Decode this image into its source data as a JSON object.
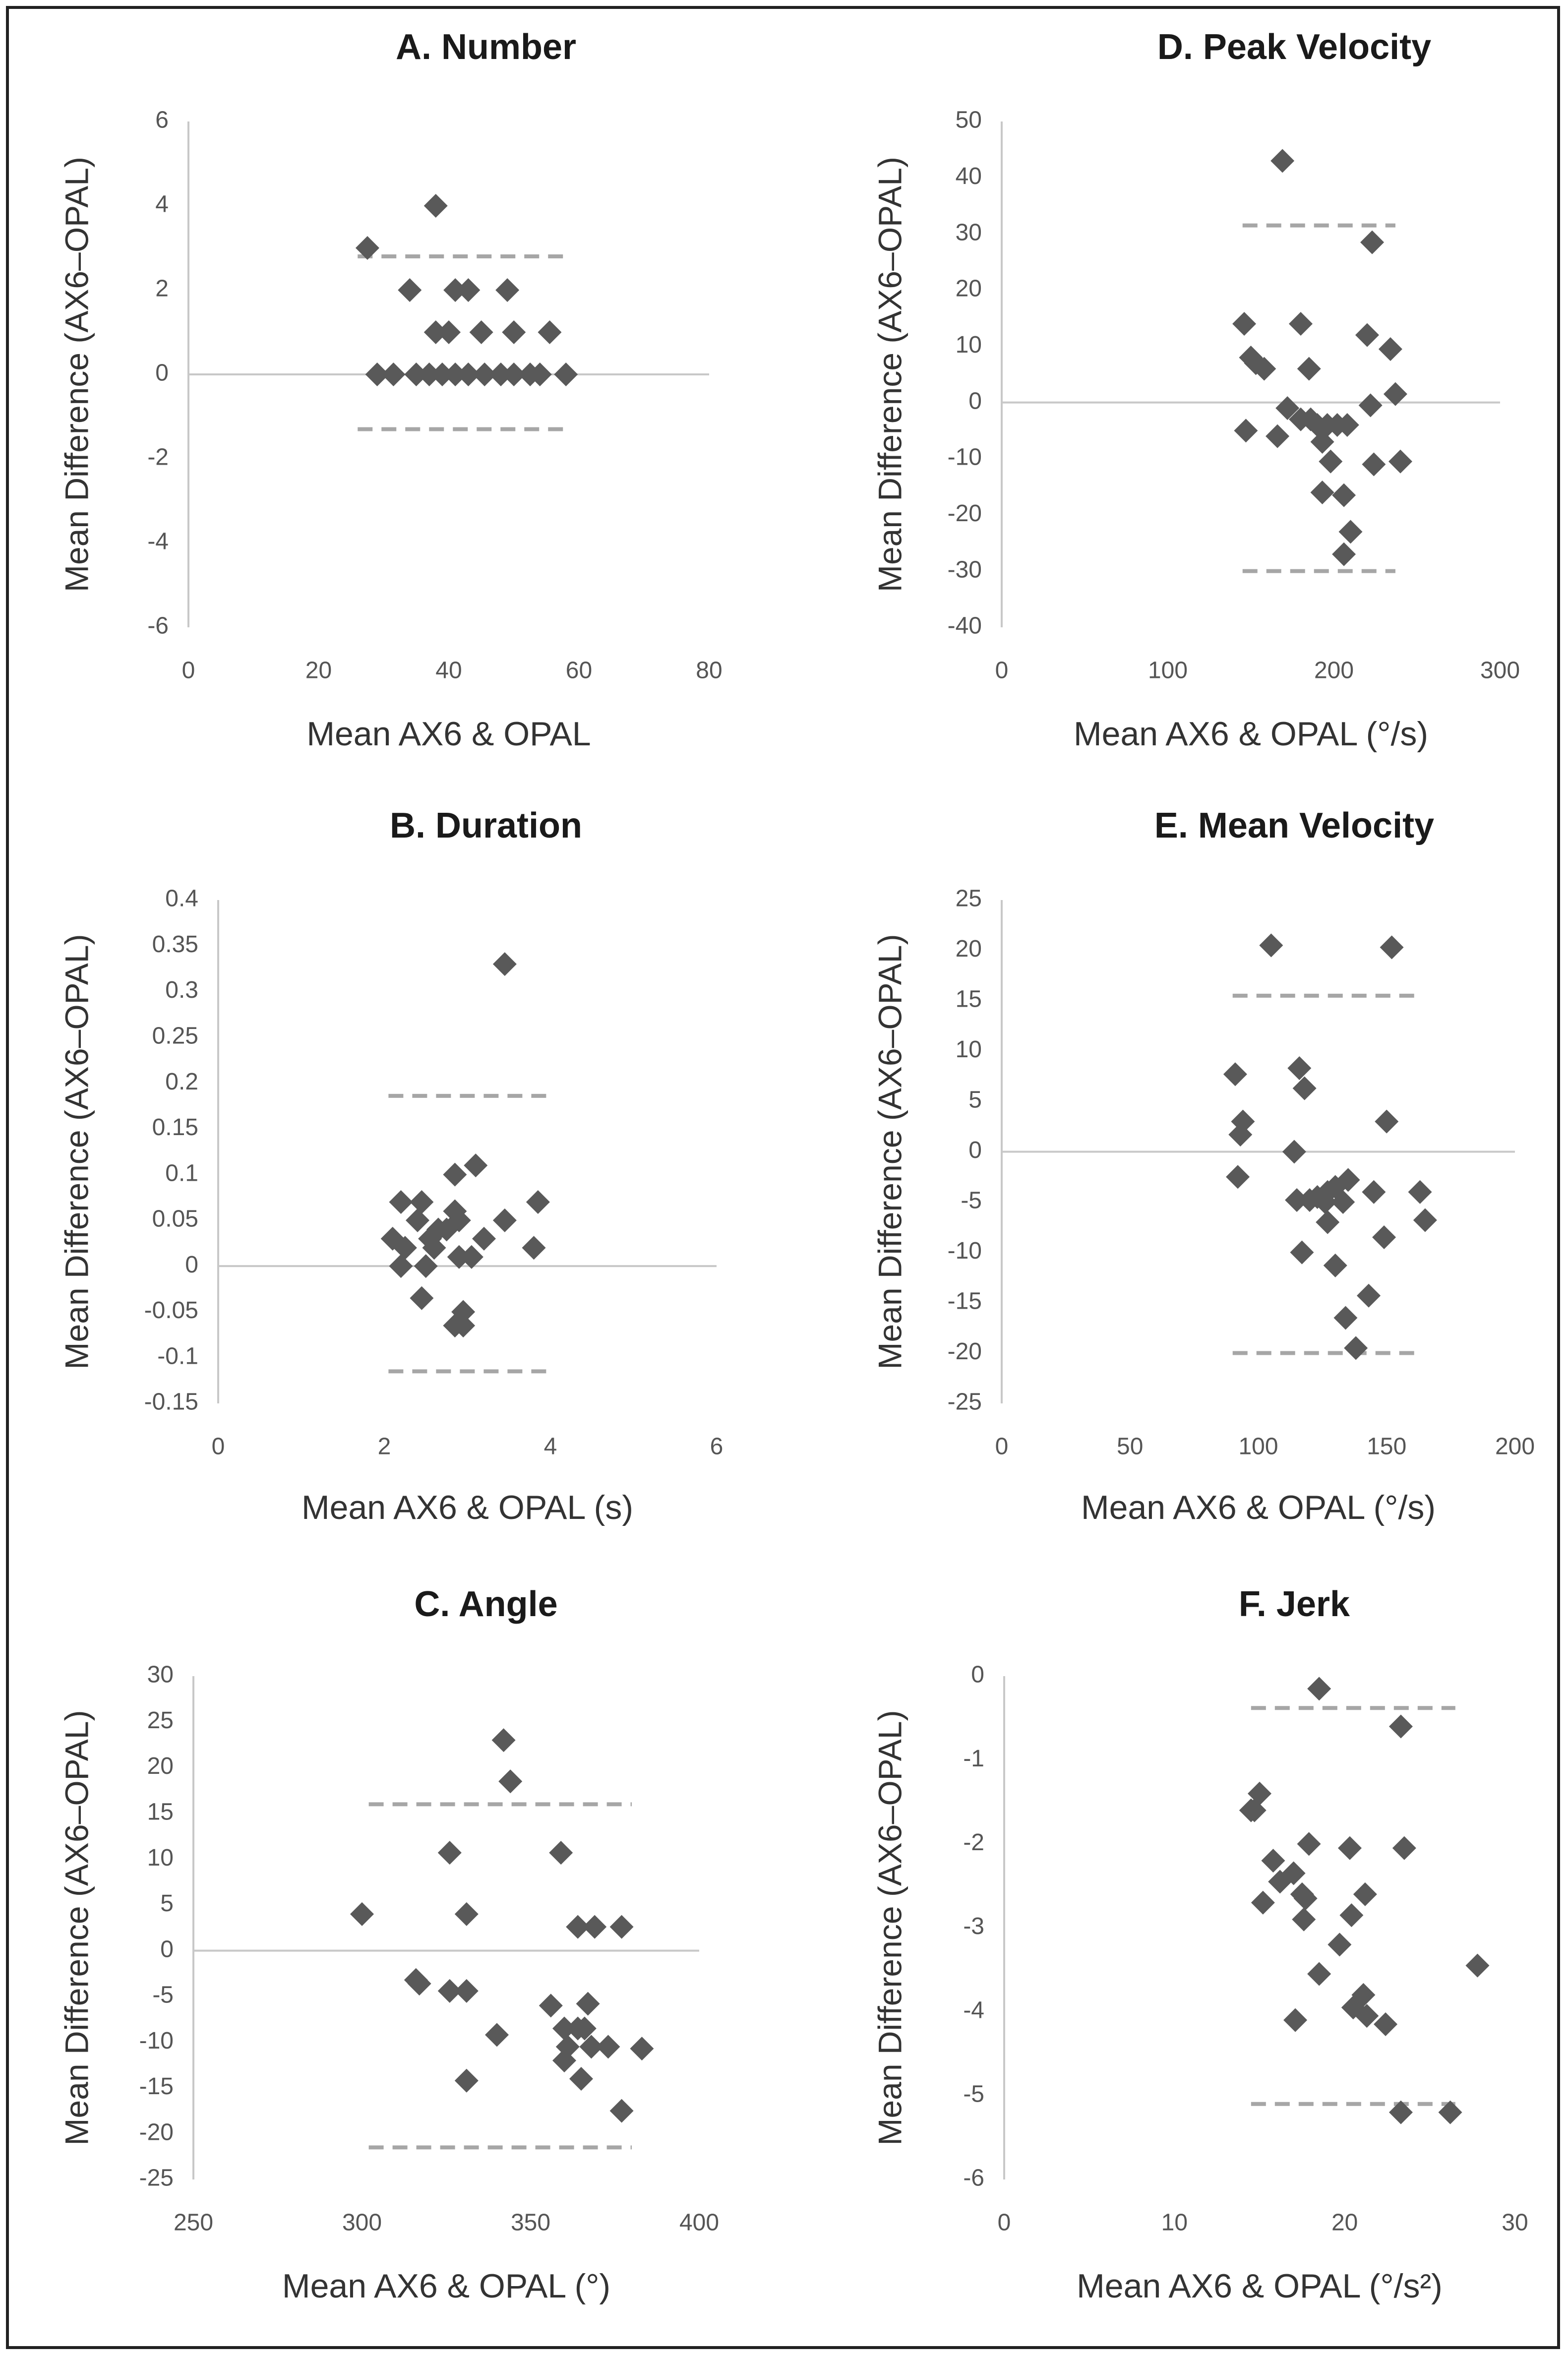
{
  "chart_data": [
    {
      "id": "A",
      "type": "scatter",
      "title": "A.  Number",
      "xlabel": "Mean AX6 & OPAL",
      "ylabel": "Mean Difference (AX6–OPAL)",
      "xlim": [
        0,
        80
      ],
      "ylim": [
        -6,
        6
      ],
      "xticks": [
        0,
        20,
        40,
        60,
        80
      ],
      "yticks": [
        -6,
        -4,
        -2,
        0,
        2,
        4,
        6
      ],
      "xtick_labels": [
        "0",
        "20",
        "40",
        "60",
        "80"
      ],
      "ytick_labels": [
        "-6",
        "-4",
        "-2",
        "0",
        "2",
        "4",
        "6"
      ],
      "zero_line": 0,
      "limit_lines": [
        2.8,
        -1.3
      ],
      "limit_x_range": [
        26,
        58
      ],
      "points": [
        [
          27.5,
          3
        ],
        [
          38,
          4
        ],
        [
          34,
          2
        ],
        [
          41,
          2
        ],
        [
          43,
          2
        ],
        [
          49,
          2
        ],
        [
          38,
          1
        ],
        [
          40,
          1
        ],
        [
          45,
          1
        ],
        [
          50,
          1
        ],
        [
          55.5,
          1
        ],
        [
          29,
          0
        ],
        [
          31.5,
          0
        ],
        [
          35,
          0
        ],
        [
          37,
          0
        ],
        [
          39,
          0
        ],
        [
          41,
          0
        ],
        [
          43,
          0
        ],
        [
          45.5,
          0
        ],
        [
          48,
          0
        ],
        [
          50,
          0
        ],
        [
          52.5,
          0
        ],
        [
          54,
          0
        ],
        [
          58,
          0
        ]
      ]
    },
    {
      "id": "B",
      "type": "scatter",
      "title": "B.  Duration",
      "xlabel": "Mean AX6 & OPAL (s)",
      "ylabel": "Mean Difference (AX6–OPAL)",
      "xlim": [
        0,
        6
      ],
      "ylim": [
        -0.15,
        0.4
      ],
      "xticks": [
        0,
        2,
        4,
        6
      ],
      "yticks": [
        -0.15,
        -0.1,
        -0.05,
        0,
        0.05,
        0.1,
        0.15,
        0.2,
        0.25,
        0.3,
        0.35,
        0.4
      ],
      "xtick_labels": [
        "0",
        "2",
        "4",
        "6"
      ],
      "ytick_labels": [
        "-0.15",
        "-0.1",
        "-0.05",
        "0",
        "0.05",
        "0.1",
        "0.15",
        "0.2",
        "0.25",
        "0.3",
        "0.35",
        "0.4"
      ],
      "zero_line": 0,
      "limit_lines": [
        0.186,
        -0.115
      ],
      "limit_x_range": [
        2.05,
        3.95
      ],
      "points": [
        [
          3.45,
          0.33
        ],
        [
          3.1,
          0.11
        ],
        [
          2.85,
          0.1
        ],
        [
          2.2,
          0.07
        ],
        [
          2.45,
          0.07
        ],
        [
          3.85,
          0.07
        ],
        [
          2.85,
          0.06
        ],
        [
          2.4,
          0.05
        ],
        [
          2.9,
          0.05
        ],
        [
          3.45,
          0.05
        ],
        [
          2.65,
          0.04
        ],
        [
          2.75,
          0.04
        ],
        [
          2.55,
          0.03
        ],
        [
          2.1,
          0.03
        ],
        [
          3.2,
          0.03
        ],
        [
          2.25,
          0.02
        ],
        [
          2.6,
          0.02
        ],
        [
          3.8,
          0.02
        ],
        [
          2.5,
          0.0
        ],
        [
          2.2,
          0.0
        ],
        [
          3.05,
          0.01
        ],
        [
          2.9,
          0.01
        ],
        [
          2.45,
          -0.035
        ],
        [
          2.95,
          -0.05
        ],
        [
          2.85,
          -0.065
        ],
        [
          2.95,
          -0.065
        ]
      ]
    },
    {
      "id": "C",
      "type": "scatter",
      "title": "C.  Angle",
      "xlabel": "Mean AX6 & OPAL (°)",
      "ylabel": "Mean Difference (AX6–OPAL)",
      "xlim": [
        250,
        400
      ],
      "ylim": [
        -25,
        30
      ],
      "xticks": [
        250,
        300,
        350,
        400
      ],
      "yticks": [
        -25,
        -20,
        -15,
        -10,
        -5,
        0,
        5,
        10,
        15,
        20,
        25,
        30
      ],
      "xtick_labels": [
        "250",
        "300",
        "350",
        "400"
      ],
      "ytick_labels": [
        "-25",
        "-20",
        "-15",
        "-10",
        "-5",
        "0",
        "5",
        "10",
        "15",
        "20",
        "25",
        "30"
      ],
      "zero_line": 0,
      "limit_lines": [
        16,
        -21.5
      ],
      "limit_x_range": [
        302,
        380
      ],
      "points": [
        [
          342,
          23
        ],
        [
          344,
          18.5
        ],
        [
          326,
          10.7
        ],
        [
          359,
          10.7
        ],
        [
          300,
          4
        ],
        [
          331,
          4
        ],
        [
          364,
          2.6
        ],
        [
          369,
          2.6
        ],
        [
          377,
          2.6
        ],
        [
          316,
          -3.2
        ],
        [
          317,
          -3.6
        ],
        [
          326,
          -4.4
        ],
        [
          331,
          -4.4
        ],
        [
          340,
          -9.2
        ],
        [
          356,
          -6
        ],
        [
          367,
          -5.8
        ],
        [
          360,
          -8.5
        ],
        [
          364,
          -8.5
        ],
        [
          366,
          -8.5
        ],
        [
          361,
          -10.5
        ],
        [
          368,
          -10.5
        ],
        [
          373,
          -10.5
        ],
        [
          383,
          -10.7
        ],
        [
          360,
          -12
        ],
        [
          331,
          -14.2
        ],
        [
          365,
          -14
        ],
        [
          377,
          -17.5
        ]
      ]
    },
    {
      "id": "D",
      "type": "scatter",
      "title": "D.  Peak Velocity",
      "xlabel": "Mean AX6 & OPAL (°/s)",
      "ylabel": "Mean Difference (AX6–OPAL)",
      "xlim": [
        0,
        300
      ],
      "ylim": [
        -40,
        50
      ],
      "xticks": [
        0,
        100,
        200,
        300
      ],
      "yticks": [
        -40,
        -30,
        -20,
        -10,
        0,
        10,
        20,
        30,
        40,
        50
      ],
      "xtick_labels": [
        "0",
        "100",
        "200",
        "300"
      ],
      "ytick_labels": [
        "-40",
        "-30",
        "-20",
        "-10",
        "0",
        "10",
        "20",
        "30",
        "40",
        "50"
      ],
      "zero_line": 0,
      "limit_lines": [
        31.5,
        -30
      ],
      "limit_x_range": [
        145,
        237
      ],
      "points": [
        [
          169,
          43
        ],
        [
          223,
          28.5
        ],
        [
          146,
          14
        ],
        [
          180,
          14
        ],
        [
          220,
          12
        ],
        [
          234,
          9.5
        ],
        [
          150,
          8
        ],
        [
          153,
          7
        ],
        [
          158,
          6
        ],
        [
          185,
          6
        ],
        [
          237,
          1.5
        ],
        [
          222,
          -0.5
        ],
        [
          172,
          -1
        ],
        [
          180,
          -3
        ],
        [
          186,
          -3
        ],
        [
          190,
          -4
        ],
        [
          196,
          -4
        ],
        [
          202,
          -4
        ],
        [
          208,
          -4
        ],
        [
          147,
          -5
        ],
        [
          166,
          -6
        ],
        [
          193,
          -7
        ],
        [
          198,
          -10.5
        ],
        [
          224,
          -11
        ],
        [
          240,
          -10.5
        ],
        [
          193,
          -16
        ],
        [
          206,
          -16.5
        ],
        [
          210,
          -23
        ],
        [
          206,
          -27
        ]
      ]
    },
    {
      "id": "E",
      "type": "scatter",
      "title": "E.  Mean Velocity",
      "xlabel": "Mean AX6 & OPAL (°/s)",
      "ylabel": "Mean Difference (AX6–OPAL)",
      "xlim": [
        0,
        200
      ],
      "ylim": [
        -25,
        25
      ],
      "xticks": [
        0,
        50,
        100,
        150,
        200
      ],
      "yticks": [
        -25,
        -20,
        -15,
        -10,
        -5,
        0,
        5,
        10,
        15,
        20,
        25
      ],
      "xtick_labels": [
        "0",
        "50",
        "100",
        "150",
        "200"
      ],
      "ytick_labels": [
        "-25",
        "-20",
        "-15",
        "-10",
        "-5",
        "0",
        "5",
        "10",
        "15",
        "20",
        "25"
      ],
      "zero_line": 0,
      "limit_lines": [
        15.5,
        -20
      ],
      "limit_x_range": [
        90,
        164
      ],
      "points": [
        [
          105,
          20.5
        ],
        [
          152,
          20.3
        ],
        [
          116,
          8.3
        ],
        [
          91,
          7.7
        ],
        [
          118,
          6.3
        ],
        [
          94,
          3
        ],
        [
          150,
          3
        ],
        [
          93,
          1.7
        ],
        [
          114,
          0
        ],
        [
          92,
          -2.5
        ],
        [
          135,
          -2.8
        ],
        [
          130,
          -3.5
        ],
        [
          127,
          -4
        ],
        [
          123,
          -4.5
        ],
        [
          145,
          -4
        ],
        [
          163,
          -4
        ],
        [
          115,
          -4.8
        ],
        [
          120,
          -4.8
        ],
        [
          126,
          -5
        ],
        [
          133,
          -5
        ],
        [
          127,
          -7
        ],
        [
          149,
          -8.5
        ],
        [
          165,
          -6.8
        ],
        [
          117,
          -10
        ],
        [
          130,
          -11.3
        ],
        [
          143,
          -14.3
        ],
        [
          134,
          -16.5
        ],
        [
          138,
          -19.5
        ]
      ]
    },
    {
      "id": "F",
      "type": "scatter",
      "title": "F.  Jerk",
      "xlabel": "Mean AX6 & OPAL (°/s²)",
      "ylabel": "Mean Difference (AX6–OPAL)",
      "xlim": [
        0,
        30
      ],
      "ylim": [
        -6,
        0
      ],
      "xticks": [
        0,
        10,
        20,
        30
      ],
      "yticks": [
        -6,
        -5,
        -4,
        -3,
        -2,
        -1,
        0
      ],
      "xtick_labels": [
        "0",
        "10",
        "20",
        "30"
      ],
      "ytick_labels": [
        "-6",
        "-5",
        "-4",
        "-3",
        "-2",
        "-1",
        "0"
      ],
      "zero_line": null,
      "limit_lines": [
        -0.38,
        -5.1
      ],
      "limit_x_range": [
        14.5,
        26.5
      ],
      "points": [
        [
          18.5,
          -0.15
        ],
        [
          23.3,
          -0.6
        ],
        [
          15,
          -1.4
        ],
        [
          14.5,
          -1.6
        ],
        [
          14.7,
          -1.6
        ],
        [
          17.9,
          -2
        ],
        [
          20.3,
          -2.05
        ],
        [
          23.5,
          -2.05
        ],
        [
          15.8,
          -2.2
        ],
        [
          16.2,
          -2.45
        ],
        [
          17,
          -2.35
        ],
        [
          17.5,
          -2.6
        ],
        [
          17.7,
          -2.65
        ],
        [
          21.2,
          -2.6
        ],
        [
          15.2,
          -2.7
        ],
        [
          20.4,
          -2.85
        ],
        [
          17.6,
          -2.9
        ],
        [
          19.7,
          -3.2
        ],
        [
          18.5,
          -3.55
        ],
        [
          27.8,
          -3.45
        ],
        [
          21.1,
          -3.8
        ],
        [
          20.5,
          -3.95
        ],
        [
          21.3,
          -4.05
        ],
        [
          22.4,
          -4.15
        ],
        [
          17.1,
          -4.1
        ],
        [
          23.3,
          -5.2
        ],
        [
          26.2,
          -5.2
        ]
      ]
    }
  ]
}
